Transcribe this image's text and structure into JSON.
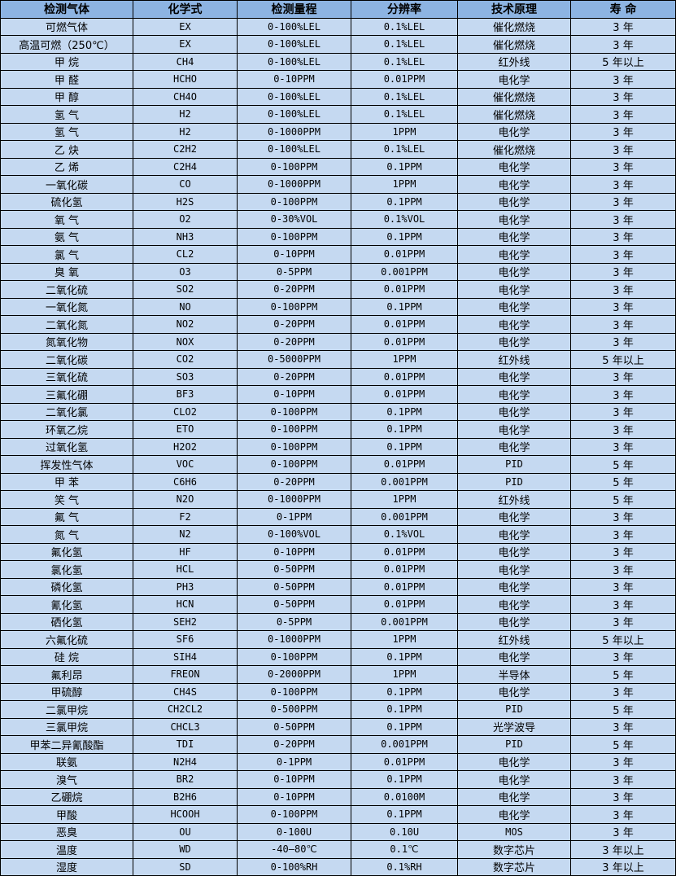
{
  "colors": {
    "header_bg": "#8db4e2",
    "row_bg": "#c5d9f1"
  },
  "headers": [
    "检测气体",
    "化学式",
    "检测量程",
    "分辨率",
    "技术原理",
    "寿 命"
  ],
  "rows": [
    [
      "可燃气体",
      "EX",
      "0-100%LEL",
      "0.1%LEL",
      "催化燃烧",
      "3 年"
    ],
    [
      "高温可燃（250℃）",
      "EX",
      "0-100%LEL",
      "0.1%LEL",
      "催化燃烧",
      "3 年"
    ],
    [
      "甲 烷",
      "CH4",
      "0-100%LEL",
      "0.1%LEL",
      "红外线",
      "5 年以上"
    ],
    [
      "甲 醛",
      "HCHO",
      "0-10PPM",
      "0.01PPM",
      "电化学",
      "3 年"
    ],
    [
      "甲 醇",
      "CH4O",
      "0-100%LEL",
      "0.1%LEL",
      "催化燃烧",
      "3 年"
    ],
    [
      "氢 气",
      "H2",
      "0-100%LEL",
      "0.1%LEL",
      "催化燃烧",
      "3 年"
    ],
    [
      "氢 气",
      "H2",
      "0-1000PPM",
      "1PPM",
      "电化学",
      "3 年"
    ],
    [
      "乙 炔",
      "C2H2",
      "0-100%LEL",
      "0.1%LEL",
      "催化燃烧",
      "3 年"
    ],
    [
      "乙 烯",
      "C2H4",
      "0-100PPM",
      "0.1PPM",
      "电化学",
      "3 年"
    ],
    [
      "一氧化碳",
      "CO",
      "0-1000PPM",
      "1PPM",
      "电化学",
      "3 年"
    ],
    [
      "硫化氢",
      "H2S",
      "0-100PPM",
      "0.1PPM",
      "电化学",
      "3 年"
    ],
    [
      "氧 气",
      "O2",
      "0-30%VOL",
      "0.1%VOL",
      "电化学",
      "3 年"
    ],
    [
      "氨 气",
      "NH3",
      "0-100PPM",
      "0.1PPM",
      "电化学",
      "3 年"
    ],
    [
      "氯 气",
      "CL2",
      "0-10PPM",
      "0.01PPM",
      "电化学",
      "3 年"
    ],
    [
      "臭 氧",
      "O3",
      "0-5PPM",
      "0.001PPM",
      "电化学",
      "3 年"
    ],
    [
      "二氧化硫",
      "SO2",
      "0-20PPM",
      "0.01PPM",
      "电化学",
      "3 年"
    ],
    [
      "一氧化氮",
      "NO",
      "0-100PPM",
      "0.1PPM",
      "电化学",
      "3 年"
    ],
    [
      "二氧化氮",
      "NO2",
      "0-20PPM",
      "0.01PPM",
      "电化学",
      "3 年"
    ],
    [
      "氮氧化物",
      "NOX",
      "0-20PPM",
      "0.01PPM",
      "电化学",
      "3 年"
    ],
    [
      "二氧化碳",
      "CO2",
      "0-5000PPM",
      "1PPM",
      "红外线",
      "5 年以上"
    ],
    [
      "三氧化硫",
      "SO3",
      "0-20PPM",
      "0.01PPM",
      "电化学",
      "3 年"
    ],
    [
      "三氟化硼",
      "BF3",
      "0-10PPM",
      "0.01PPM",
      "电化学",
      "3 年"
    ],
    [
      "二氧化氯",
      "CLO2",
      "0-100PPM",
      "0.1PPM",
      "电化学",
      "3 年"
    ],
    [
      "环氧乙烷",
      "ETO",
      "0-100PPM",
      "0.1PPM",
      "电化学",
      "3 年"
    ],
    [
      "过氧化氢",
      "H2O2",
      "0-100PPM",
      "0.1PPM",
      "电化学",
      "3 年"
    ],
    [
      "挥发性气体",
      "VOC",
      "0-100PPM",
      "0.01PPM",
      "PID",
      "5 年"
    ],
    [
      "甲 苯",
      "C6H6",
      "0-20PPM",
      "0.001PPM",
      "PID",
      "5 年"
    ],
    [
      "笑 气",
      "N2O",
      "0-1000PPM",
      "1PPM",
      "红外线",
      "5 年"
    ],
    [
      "氟 气",
      "F2",
      "0-1PPM",
      "0.001PPM",
      "电化学",
      "3 年"
    ],
    [
      "氮 气",
      "N2",
      "0-100%VOL",
      "0.1%VOL",
      "电化学",
      "3 年"
    ],
    [
      "氟化氢",
      "HF",
      "0-10PPM",
      "0.01PPM",
      "电化学",
      "3 年"
    ],
    [
      "氯化氢",
      "HCL",
      "0-50PPM",
      "0.01PPM",
      "电化学",
      "3 年"
    ],
    [
      "磷化氢",
      "PH3",
      "0-50PPM",
      "0.01PPM",
      "电化学",
      "3 年"
    ],
    [
      "氰化氢",
      "HCN",
      "0-50PPM",
      "0.01PPM",
      "电化学",
      "3 年"
    ],
    [
      "硒化氢",
      "SEH2",
      "0-5PPM",
      "0.001PPM",
      "电化学",
      "3 年"
    ],
    [
      "六氟化硫",
      "SF6",
      "0-1000PPM",
      "1PPM",
      "红外线",
      "5 年以上"
    ],
    [
      "硅 烷",
      "SIH4",
      "0-100PPM",
      "0.1PPM",
      "电化学",
      "3 年"
    ],
    [
      "氟利昂",
      "FREON",
      "0-2000PPM",
      "1PPM",
      "半导体",
      "5 年"
    ],
    [
      "甲硫醇",
      "CH4S",
      "0-100PPM",
      "0.1PPM",
      "电化学",
      "3 年"
    ],
    [
      "二氯甲烷",
      "CH2CL2",
      "0-500PPM",
      "0.1PPM",
      "PID",
      "5 年"
    ],
    [
      "三氯甲烷",
      "CHCL3",
      "0-50PPM",
      "0.1PPM",
      "光学波导",
      "3 年"
    ],
    [
      "甲苯二异氰酸酯",
      "TDI",
      "0-20PPM",
      "0.001PPM",
      "PID",
      "5 年"
    ],
    [
      "联氨",
      "N2H4",
      "0-1PPM",
      "0.01PPM",
      "电化学",
      "3 年"
    ],
    [
      "溴气",
      "BR2",
      "0-10PPM",
      "0.1PPM",
      "电化学",
      "3 年"
    ],
    [
      "乙硼烷",
      "B2H6",
      "0-10PPM",
      "0.0100M",
      "电化学",
      "3 年"
    ],
    [
      "甲酸",
      "HCOOH",
      "0-100PPM",
      "0.1PPM",
      "电化学",
      "3 年"
    ],
    [
      "恶臭",
      "OU",
      "0-100U",
      "0.10U",
      "MOS",
      "3 年"
    ],
    [
      "温度",
      "WD",
      "-40—80℃",
      "0.1℃",
      "数字芯片",
      "3 年以上"
    ],
    [
      "湿度",
      "SD",
      "0-100%RH",
      "0.1%RH",
      "数字芯片",
      "3 年以上"
    ]
  ]
}
